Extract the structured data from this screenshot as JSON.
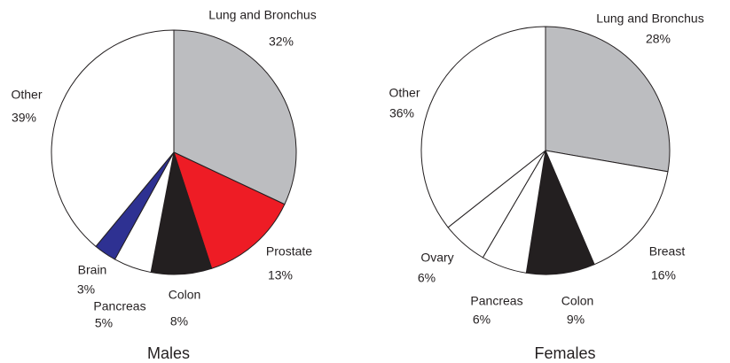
{
  "chart_data": [
    {
      "type": "pie",
      "title": "Males",
      "categories": [
        "Lung and Bronchus",
        "Prostate",
        "Colon",
        "Pancreas",
        "Brain",
        "Other"
      ],
      "values": [
        32,
        13,
        8,
        5,
        3,
        39
      ],
      "value_labels": [
        "32%",
        "13%",
        "8%",
        "5%",
        "3%",
        "39%"
      ],
      "colors": [
        "#bcbdc0",
        "#ee1c25",
        "#231f20",
        "#ffffff",
        "#2e3192",
        "#ffffff"
      ]
    },
    {
      "type": "pie",
      "title": "Females",
      "categories": [
        "Lung and Bronchus",
        "Breast",
        "Colon",
        "Pancreas",
        "Ovary",
        "Other"
      ],
      "values": [
        28,
        16,
        9,
        6,
        6,
        36
      ],
      "value_labels": [
        "28%",
        "16%",
        "9%",
        "6%",
        "6%",
        "36%"
      ],
      "colors": [
        "#bcbdc0",
        "#ffffff",
        "#231f20",
        "#ffffff",
        "#ffffff",
        "#ffffff"
      ]
    }
  ]
}
